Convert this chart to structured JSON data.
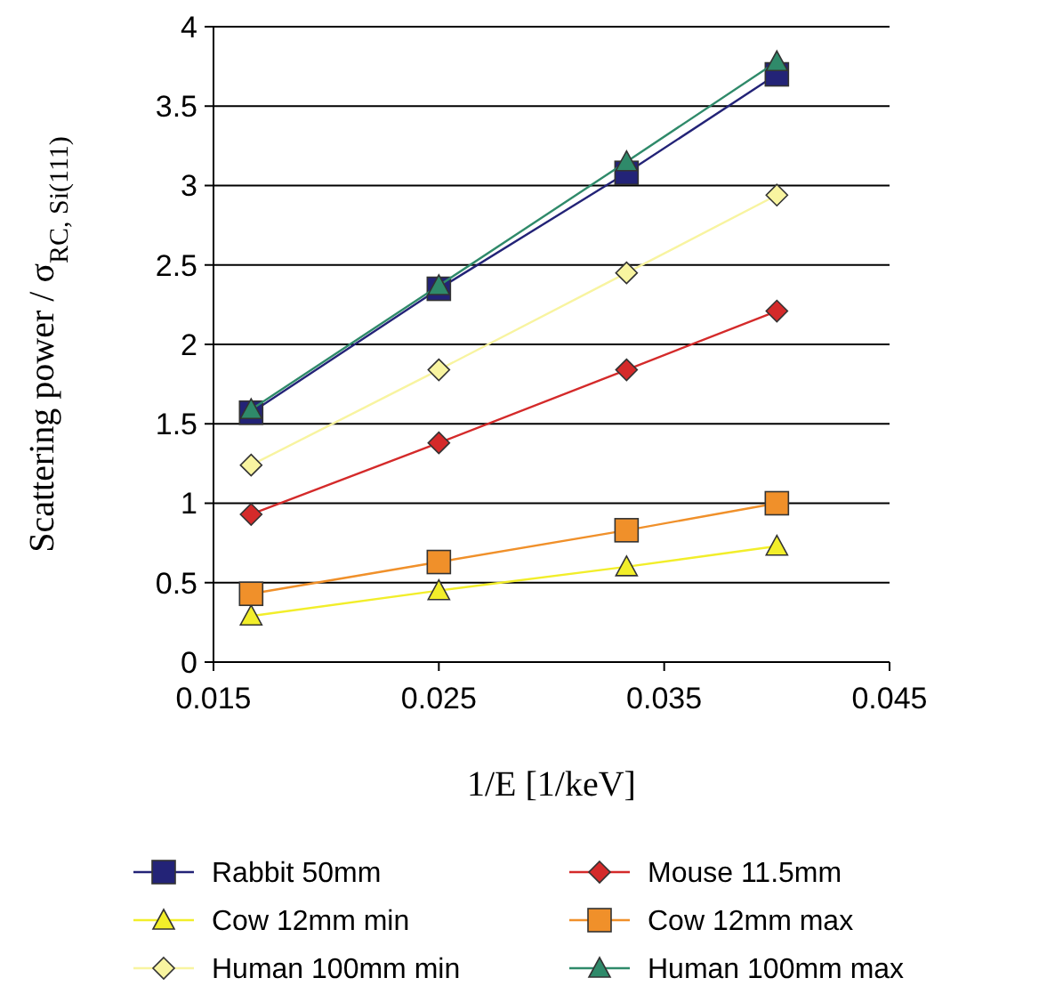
{
  "chart_data": {
    "type": "line",
    "xlabel": "1/E [1/keV]",
    "ylabel": "Scattering power / σ$_{RC, Si(111)}$",
    "x": [
      0.01667,
      0.025,
      0.03333,
      0.04
    ],
    "xlim": [
      0.015,
      0.045
    ],
    "xticks": [
      0.015,
      0.025,
      0.035,
      0.045
    ],
    "ylim": [
      0,
      4
    ],
    "yticks": [
      0,
      0.5,
      1,
      1.5,
      2,
      2.5,
      3,
      3.5,
      4
    ],
    "grid": "y",
    "legend": "bottom",
    "series": [
      {
        "name": "Rabbit 50mm",
        "color": "#232377",
        "marker": "square",
        "values": [
          1.57,
          2.35,
          3.08,
          3.7
        ]
      },
      {
        "name": "Mouse 11.5mm",
        "color": "#d42a2a",
        "marker": "diamond",
        "values": [
          0.93,
          1.38,
          1.84,
          2.21
        ]
      },
      {
        "name": "Cow 12mm min",
        "color": "#f2ee2a",
        "marker": "triangle",
        "values": [
          0.29,
          0.45,
          0.6,
          0.73
        ]
      },
      {
        "name": "Cow 12mm max",
        "color": "#f0902a",
        "marker": "square",
        "values": [
          0.43,
          0.63,
          0.83,
          1.0
        ]
      },
      {
        "name": "Human 100mm min",
        "color": "#f8f4a0",
        "marker": "diamond",
        "values": [
          1.24,
          1.84,
          2.45,
          2.94
        ]
      },
      {
        "name": "Human 100mm max",
        "color": "#2f8a6a",
        "marker": "triangle",
        "values": [
          1.59,
          2.37,
          3.15,
          3.78
        ]
      }
    ]
  }
}
